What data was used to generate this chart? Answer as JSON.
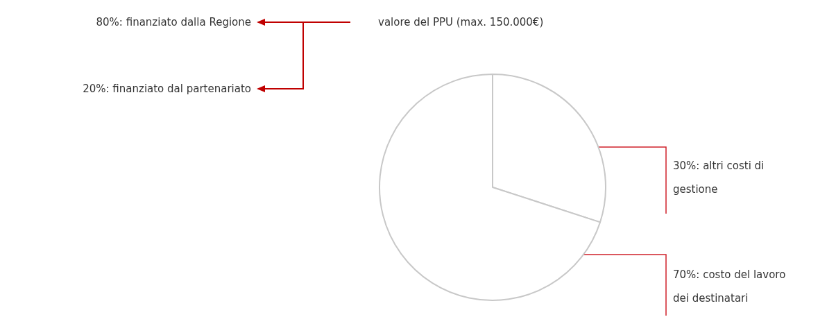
{
  "chart_data": {
    "type": "pie",
    "categories": [
      "30%: altri costi di gestione",
      "70%: costo del lavoro dei destinatari"
    ],
    "values": [
      30,
      70
    ],
    "colors": [
      "#ffffff",
      "#ffffff"
    ],
    "annotations": [
      "valore del PPU (max. 150.000€)",
      "80%: finanziato dalla Regione",
      "20%: finanziato dal partenariato"
    ]
  }
}
